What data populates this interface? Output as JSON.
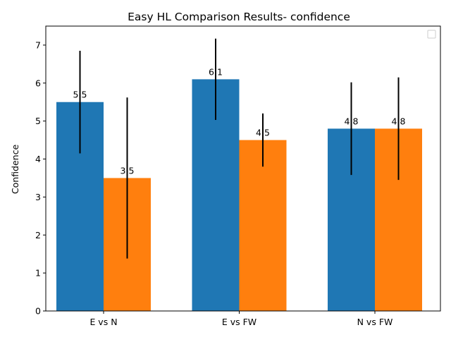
{
  "chart_data": {
    "type": "bar",
    "title": "Easy HL Comparison Results- confidence",
    "xlabel": "",
    "ylabel": "Confidence",
    "categories": [
      "E vs N",
      "E vs FW",
      "N vs FW"
    ],
    "series": [
      {
        "values": [
          5.5,
          6.1,
          4.8
        ],
        "errors": [
          [
            4.15,
            6.85
          ],
          [
            5.03,
            7.17
          ],
          [
            3.58,
            6.02
          ]
        ],
        "labels": [
          "5.5",
          "6.1",
          "4.8"
        ],
        "color": "#1f77b4"
      },
      {
        "values": [
          3.5,
          4.5,
          4.8
        ],
        "errors": [
          [
            1.38,
            5.62
          ],
          [
            3.8,
            5.2
          ],
          [
            3.45,
            6.15
          ]
        ],
        "labels": [
          "3.5",
          "4.5",
          "4.8"
        ],
        "color": "#ff7f0e"
      }
    ],
    "ylim": [
      0,
      7.5
    ],
    "yticks": [
      "0",
      "1",
      "2",
      "3",
      "4",
      "5",
      "6",
      "7"
    ],
    "grid": false,
    "legend": "top-right, empty"
  }
}
